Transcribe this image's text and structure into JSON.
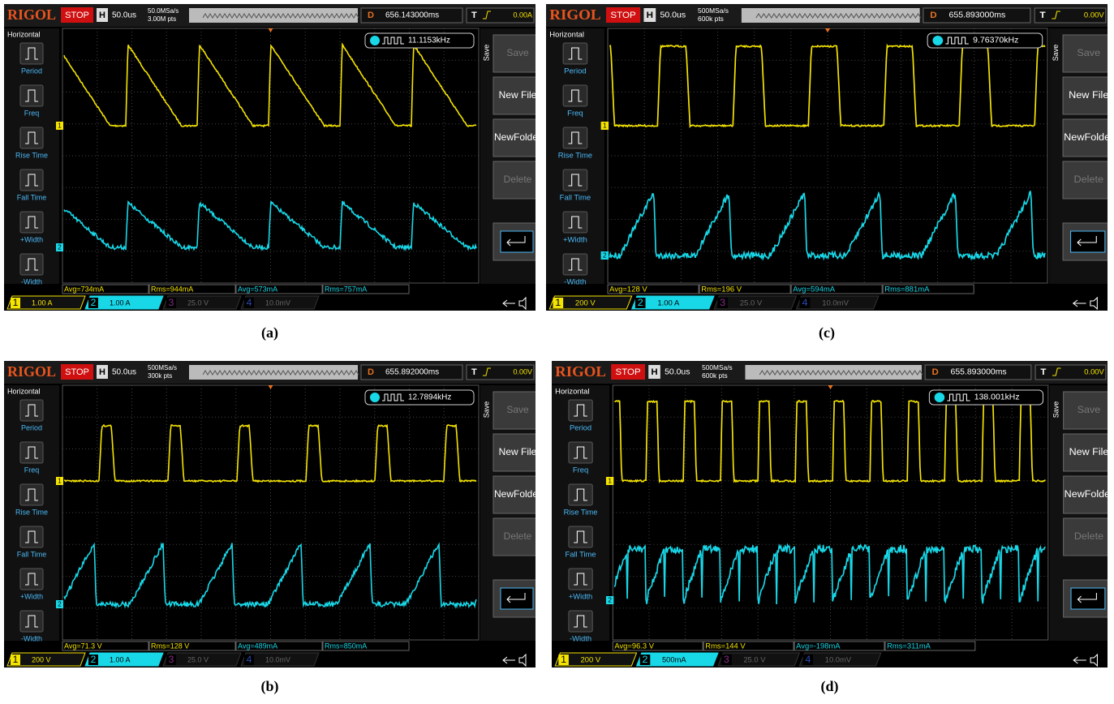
{
  "panels": [
    {
      "caption": "(a)",
      "brand": "RIGOL",
      "status": "STOP",
      "timebase_label": "H",
      "timebase": "50.0us",
      "sample_rate": "50.0MSa/s",
      "memory_depth": "3.00M pts",
      "delay_label": "D",
      "delay": "656.143000ms",
      "trigger_label": "T",
      "trigger_level": "0.00A",
      "frequency": "11.1153kHz",
      "menu_title": "Horizontal",
      "menu_items": [
        "Period",
        "Freq",
        "Rise Time",
        "Fall Time",
        "+Width",
        "-Width"
      ],
      "save_title": "Save",
      "save_buttons": [
        "Save",
        "New File",
        "NewFolder",
        "Delete"
      ],
      "measurements": [
        "Avg=734mA",
        "Rms=944mA",
        "Avg=573mA",
        "Rms=757mA"
      ],
      "channels": [
        {
          "number": "1",
          "scale": "1.00 A"
        },
        {
          "number": "2",
          "scale": "1.00 A"
        },
        {
          "number": "3",
          "scale": "25.0 V"
        },
        {
          "number": "4",
          "scale": "10.0mV"
        }
      ]
    },
    {
      "caption": "(c)",
      "brand": "RIGOL",
      "status": "STOP",
      "timebase_label": "H",
      "timebase": "50.0us",
      "sample_rate": "500MSa/s",
      "memory_depth": "600k pts",
      "delay_label": "D",
      "delay": "655.893000ms",
      "trigger_label": "T",
      "trigger_level": "0.00V",
      "frequency": "9.76370kHz",
      "menu_title": "Horizontal",
      "menu_items": [
        "Period",
        "Freq",
        "Rise Time",
        "Fall Time",
        "+Width",
        "-Width"
      ],
      "save_title": "Save",
      "save_buttons": [
        "Save",
        "New File",
        "NewFolder",
        "Delete"
      ],
      "measurements": [
        "Avg=128 V",
        "Rms=196 V",
        "Avg=594mA",
        "Rms=881mA"
      ],
      "channels": [
        {
          "number": "1",
          "scale": "200 V"
        },
        {
          "number": "2",
          "scale": "1.00 A"
        },
        {
          "number": "3",
          "scale": "25.0 V"
        },
        {
          "number": "4",
          "scale": "10.0mV"
        }
      ]
    },
    {
      "caption": "(b)",
      "brand": "RIGOL",
      "status": "STOP",
      "timebase_label": "H",
      "timebase": "50.0us",
      "sample_rate": "500MSa/s",
      "memory_depth": "300k pts",
      "delay_label": "D",
      "delay": "655.892000ms",
      "trigger_label": "T",
      "trigger_level": "0.00V",
      "frequency": "12.7894kHz",
      "menu_title": "Horizontal",
      "menu_items": [
        "Period",
        "Freq",
        "Rise Time",
        "Fall Time",
        "+Width",
        "-Width"
      ],
      "save_title": "Save",
      "save_buttons": [
        "Save",
        "New File",
        "NewFolder",
        "Delete"
      ],
      "measurements": [
        "Avg=71.3 V",
        "Rms=128 V",
        "Avg=489mA",
        "Rms=850mA"
      ],
      "channels": [
        {
          "number": "1",
          "scale": "200 V"
        },
        {
          "number": "2",
          "scale": "1.00 A"
        },
        {
          "number": "3",
          "scale": "25.0 V"
        },
        {
          "number": "4",
          "scale": "10.0mV"
        }
      ]
    },
    {
      "caption": "(d)",
      "brand": "RIGOL",
      "status": "STOP",
      "timebase_label": "H",
      "timebase": "50.0us",
      "sample_rate": "500MSa/s",
      "memory_depth": "600k pts",
      "delay_label": "D",
      "delay": "655.893000ms",
      "trigger_label": "T",
      "trigger_level": "0.00V",
      "frequency": "138.001kHz",
      "menu_title": "Horizontal",
      "menu_items": [
        "Period",
        "Freq",
        "Rise Time",
        "Fall Time",
        "+Width",
        "-Width"
      ],
      "save_title": "Save",
      "save_buttons": [
        "Save",
        "New File",
        "NewFolder",
        "Delete"
      ],
      "measurements": [
        "Avg=96.3 V",
        "Rms=144 V",
        "Avg=-198mA",
        "Rms=311mA"
      ],
      "channels": [
        {
          "number": "1",
          "scale": "200 V"
        },
        {
          "number": "2",
          "scale": "500mA"
        },
        {
          "number": "3",
          "scale": "25.0 V"
        },
        {
          "number": "4",
          "scale": "10.0mV"
        }
      ]
    }
  ]
}
